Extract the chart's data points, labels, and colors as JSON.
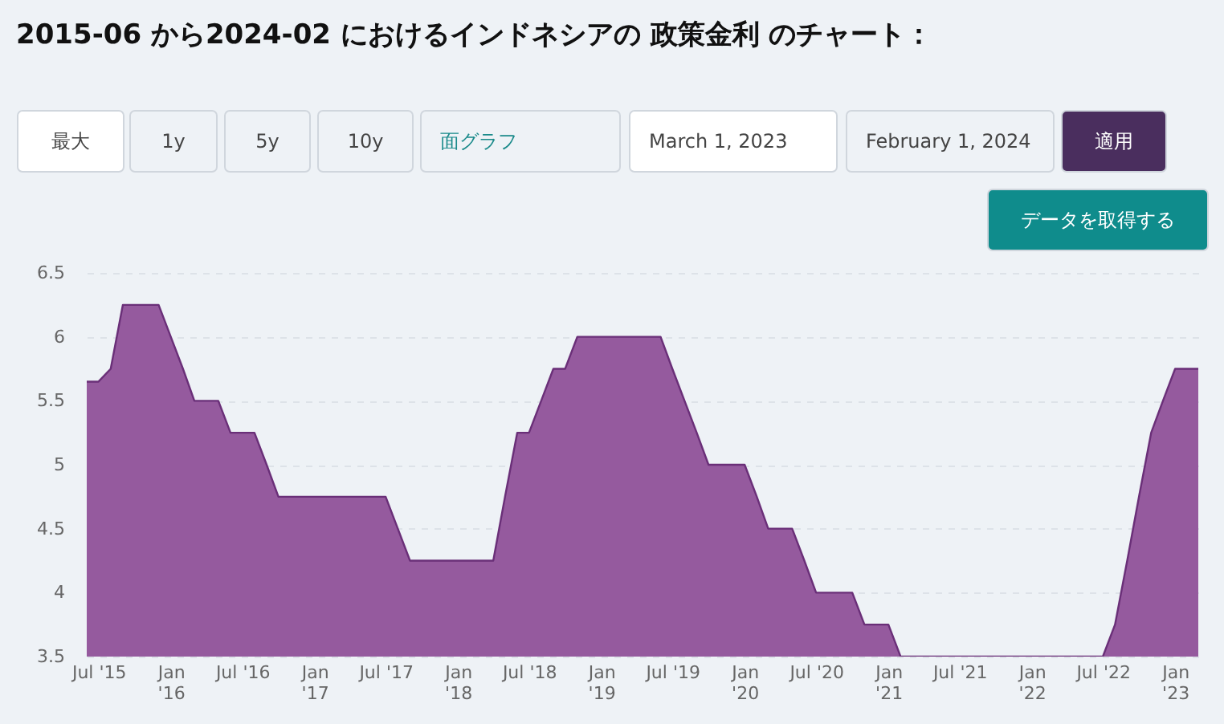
{
  "chart_data": {
    "type": "area",
    "title": "2015-06 から2024-02 におけるインドネシアの 政策金利 のチャート：",
    "annotations": [
      "最大",
      "1y",
      "5y",
      "10y",
      "面グラフ",
      "March 1, 2023",
      "February 1, 2024",
      "適用",
      "データを取得する"
    ],
    "x": [
      "2015-06",
      "2015-07",
      "2015-08",
      "2015-09",
      "2015-10",
      "2015-11",
      "2015-12",
      "2016-01",
      "2016-02",
      "2016-03",
      "2016-04",
      "2016-05",
      "2016-06",
      "2016-07",
      "2016-08",
      "2016-09",
      "2016-10",
      "2016-11",
      "2016-12",
      "2017-01",
      "2017-02",
      "2017-03",
      "2017-04",
      "2017-05",
      "2017-06",
      "2017-07",
      "2017-08",
      "2017-09",
      "2017-10",
      "2017-11",
      "2017-12",
      "2018-01",
      "2018-02",
      "2018-03",
      "2018-04",
      "2018-05",
      "2018-06",
      "2018-07",
      "2018-08",
      "2018-09",
      "2018-10",
      "2018-11",
      "2018-12",
      "2019-01",
      "2019-02",
      "2019-03",
      "2019-04",
      "2019-05",
      "2019-06",
      "2019-07",
      "2019-08",
      "2019-09",
      "2019-10",
      "2019-11",
      "2019-12",
      "2020-01",
      "2020-02",
      "2020-03",
      "2020-04",
      "2020-05",
      "2020-06",
      "2020-07",
      "2020-08",
      "2020-09",
      "2020-10",
      "2020-11",
      "2020-12",
      "2021-01",
      "2021-02",
      "2021-03",
      "2021-04",
      "2021-05",
      "2021-06",
      "2021-07",
      "2021-08",
      "2021-09",
      "2021-10",
      "2021-11",
      "2021-12",
      "2022-01",
      "2022-02",
      "2022-03",
      "2022-04",
      "2022-05",
      "2022-06",
      "2022-07",
      "2022-08",
      "2022-09",
      "2022-10",
      "2022-11",
      "2022-12",
      "2023-01",
      "2023-02",
      "2023-03"
    ],
    "series": [
      {
        "color": "#955a9e",
        "values": [
          5.65,
          5.65,
          5.75,
          6.25,
          6.25,
          6.25,
          6.25,
          6.0,
          5.75,
          5.5,
          5.5,
          5.5,
          5.25,
          5.25,
          5.25,
          5.0,
          4.75,
          4.75,
          4.75,
          4.75,
          4.75,
          4.75,
          4.75,
          4.75,
          4.75,
          4.75,
          4.5,
          4.25,
          4.25,
          4.25,
          4.25,
          4.25,
          4.25,
          4.25,
          4.25,
          4.75,
          5.25,
          5.25,
          5.5,
          5.75,
          5.75,
          6.0,
          6.0,
          6.0,
          6.0,
          6.0,
          6.0,
          6.0,
          6.0,
          5.75,
          5.5,
          5.25,
          5.0,
          5.0,
          5.0,
          5.0,
          4.75,
          4.5,
          4.5,
          4.5,
          4.25,
          4.0,
          4.0,
          4.0,
          4.0,
          3.75,
          3.75,
          3.75,
          3.5,
          3.5,
          3.5,
          3.5,
          3.5,
          3.5,
          3.5,
          3.5,
          3.5,
          3.5,
          3.5,
          3.5,
          3.5,
          3.5,
          3.5,
          3.5,
          3.5,
          3.5,
          3.75,
          4.25,
          4.75,
          5.25,
          5.5,
          5.75,
          5.75,
          5.75
        ]
      }
    ],
    "xlim": [
      "2015-06",
      "2023-03"
    ],
    "xticks": [
      {
        "value": "2015-07",
        "label": "Jul '15"
      },
      {
        "value": "2016-01",
        "label": "Jan '16"
      },
      {
        "value": "2016-07",
        "label": "Jul '16"
      },
      {
        "value": "2017-01",
        "label": "Jan '17"
      },
      {
        "value": "2017-07",
        "label": "Jul '17"
      },
      {
        "value": "2018-01",
        "label": "Jan '18"
      },
      {
        "value": "2018-07",
        "label": "Jul '18"
      },
      {
        "value": "2019-01",
        "label": "Jan '19"
      },
      {
        "value": "2019-07",
        "label": "Jul '19"
      },
      {
        "value": "2020-01",
        "label": "Jan '20"
      },
      {
        "value": "2020-07",
        "label": "Jul '20"
      },
      {
        "value": "2021-01",
        "label": "Jan '21"
      },
      {
        "value": "2021-07",
        "label": "Jul '21"
      },
      {
        "value": "2022-01",
        "label": "Jan '22"
      },
      {
        "value": "2022-07",
        "label": "Jul '22"
      },
      {
        "value": "2023-01",
        "label": "Jan '23"
      }
    ],
    "ylim": [
      3.5,
      6.5
    ],
    "yticks": [
      3.5,
      4,
      4.5,
      5,
      5.5,
      6,
      6.5
    ],
    "grid": "y"
  }
}
